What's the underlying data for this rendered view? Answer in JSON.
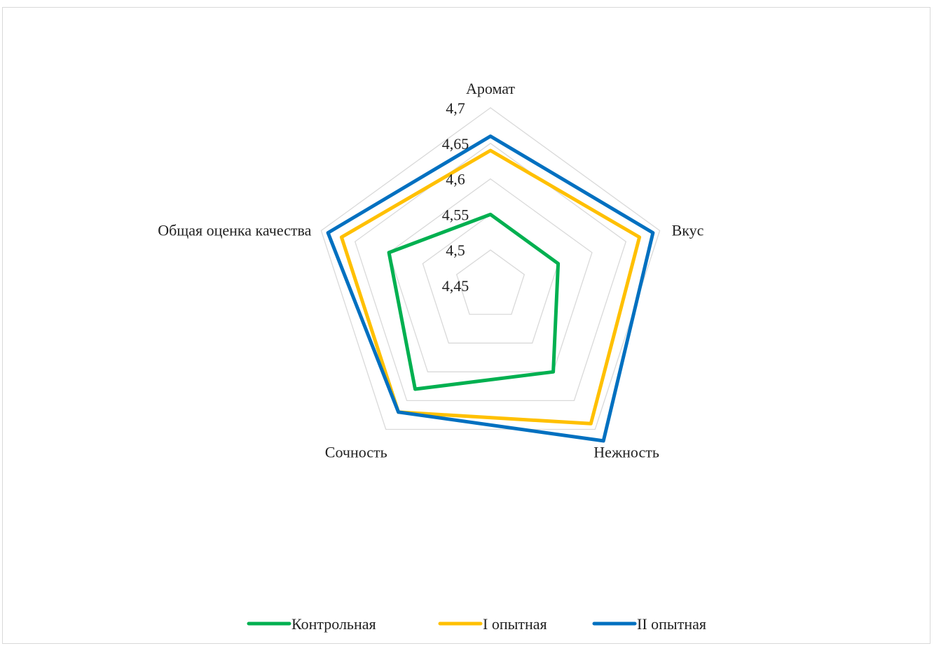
{
  "chart_data": {
    "type": "radar",
    "categories": [
      "Аромат",
      "Вкус",
      "Нежность",
      "Сочность",
      "Общая оценка качества"
    ],
    "rlim": [
      4.45,
      4.7
    ],
    "ticks": [
      4.45,
      4.5,
      4.55,
      4.6,
      4.65,
      4.7
    ],
    "tick_labels": [
      "4,45",
      "4,5",
      "4,55",
      "4,6",
      "4,65",
      "4,7"
    ],
    "grid": true,
    "legend_position": "bottom",
    "series": [
      {
        "name": "Контрольная",
        "color": "#00b050",
        "values": [
          4.55,
          4.55,
          4.6,
          4.63,
          4.6
        ]
      },
      {
        "name": "I опытная",
        "color": "#ffc000",
        "values": [
          4.64,
          4.67,
          4.69,
          4.67,
          4.67
        ]
      },
      {
        "name": "II опытная",
        "color": "#0070c0",
        "values": [
          4.66,
          4.69,
          4.72,
          4.67,
          4.69
        ]
      }
    ]
  }
}
